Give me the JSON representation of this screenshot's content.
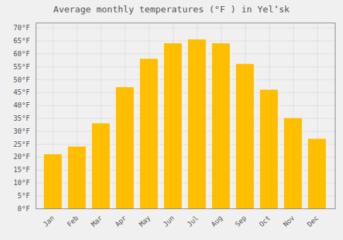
{
  "chart_data": {
    "type": "bar",
    "title": "Average monthly temperatures (°F ) in Yelʼsk",
    "categories": [
      "Jan",
      "Feb",
      "Mar",
      "Apr",
      "May",
      "Jun",
      "Jul",
      "Aug",
      "Sep",
      "Oct",
      "Nov",
      "Dec"
    ],
    "values": [
      21,
      24,
      33,
      47,
      58,
      64,
      65.5,
      64,
      56,
      46,
      35,
      27
    ],
    "color": "#FFBE00",
    "ylim": [
      0,
      72
    ],
    "yticks": [
      {
        "value": 0,
        "label": "0°F"
      },
      {
        "value": 5,
        "label": "5°F"
      },
      {
        "value": 10,
        "label": "10°F"
      },
      {
        "value": 15,
        "label": "15°F"
      },
      {
        "value": 20,
        "label": "20°F"
      },
      {
        "value": 25,
        "label": "25°F"
      },
      {
        "value": 30,
        "label": "30°F"
      },
      {
        "value": 35,
        "label": "35°F"
      },
      {
        "value": 40,
        "label": "40°F"
      },
      {
        "value": 45,
        "label": "45°F"
      },
      {
        "value": 50,
        "label": "50°F"
      },
      {
        "value": 55,
        "label": "55°F"
      },
      {
        "value": 60,
        "label": "60°F"
      },
      {
        "value": 65,
        "label": "65°F"
      },
      {
        "value": 70,
        "label": "70°F"
      }
    ],
    "grid": true
  }
}
